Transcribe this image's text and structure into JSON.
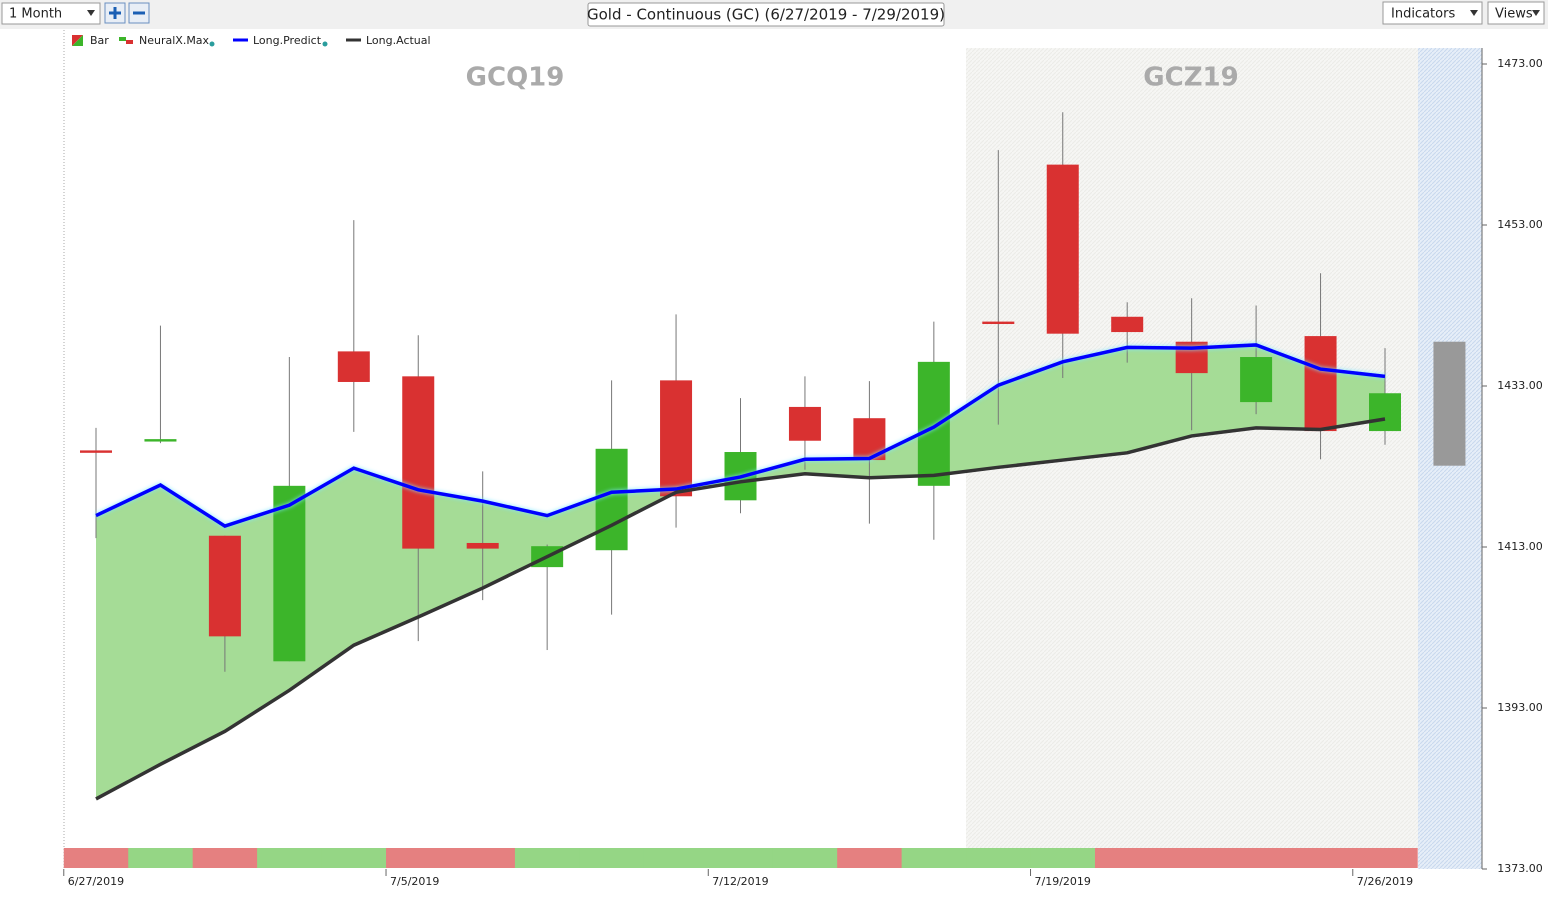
{
  "toolbar": {
    "period": "1 Month",
    "indicators": "Indicators",
    "views": "Views"
  },
  "chart_data": {
    "type": "candlestick",
    "title": "Gold - Continuous (GC) (6/27/2019 - 7/29/2019)",
    "annotations": [
      "GCQ19",
      "GCZ19"
    ],
    "bar_name": "Bar",
    "categories": [
      "6/27/2019",
      null,
      null,
      null,
      null,
      "7/5/2019",
      null,
      null,
      null,
      null,
      "7/12/2019",
      null,
      null,
      null,
      null,
      "7/19/2019",
      null,
      null,
      null,
      null,
      "7/26/2019"
    ],
    "open": [
      1425.0,
      1426.1,
      1414.4,
      1398.8,
      1437.3,
      1434.2,
      1413.5,
      1410.5,
      1412.6,
      1433.7,
      1418.8,
      1430.4,
      1429.0,
      1420.6,
      1441.0,
      1460.5,
      1441.6,
      1438.5,
      1431.0,
      1439.2,
      1427.4
    ],
    "high": [
      1427.8,
      1440.5,
      1414.4,
      1436.6,
      1453.6,
      1439.3,
      1422.4,
      1413.3,
      1433.7,
      1441.9,
      1431.5,
      1434.2,
      1433.6,
      1441.0,
      1462.3,
      1467.0,
      1443.4,
      1443.9,
      1443.0,
      1447.0,
      1437.7
    ],
    "low": [
      1414.1,
      1425.9,
      1397.5,
      1398.8,
      1427.3,
      1401.3,
      1406.4,
      1400.2,
      1404.6,
      1415.4,
      1417.2,
      1422.6,
      1415.9,
      1413.9,
      1428.2,
      1434.0,
      1435.9,
      1427.5,
      1429.5,
      1423.9,
      1425.7
    ],
    "close": [
      1424.7,
      1426.4,
      1401.9,
      1420.6,
      1433.5,
      1412.8,
      1412.8,
      1413.1,
      1425.2,
      1419.3,
      1424.8,
      1426.2,
      1423.8,
      1436.0,
      1440.7,
      1439.5,
      1439.7,
      1434.6,
      1436.6,
      1427.4,
      1432.1
    ],
    "up_color": "#3cb52a",
    "down_color": "#d93131",
    "forecast": {
      "high": 1438.5,
      "low": 1423.1,
      "color": "#999999"
    },
    "series": [
      {
        "name": "Long.Predict",
        "color": "#0000ff",
        "values": [
          1416.9,
          1420.7,
          1415.6,
          1418.2,
          1422.8,
          1420.1,
          1418.7,
          1416.9,
          1419.8,
          1420.2,
          1421.7,
          1423.9,
          1424.0,
          1427.9,
          1433.1,
          1436.0,
          1437.8,
          1437.7,
          1438.1,
          1435.1,
          1434.2
        ]
      },
      {
        "name": "Long.Actual",
        "color": "#333333",
        "values": [
          1381.7,
          1386.0,
          1390.1,
          1395.2,
          1400.8,
          1404.3,
          1407.9,
          1411.8,
          1415.7,
          1419.8,
          1421.1,
          1422.1,
          1421.6,
          1421.9,
          1422.9,
          1423.8,
          1424.7,
          1426.8,
          1427.8,
          1427.6,
          1428.9
        ]
      }
    ],
    "area_color": "#a5dc96",
    "signal": {
      "name": "NeuralX.Max",
      "colors": [
        "#e58080",
        "#95d685",
        "#e58080",
        "#95d685",
        "#95d685",
        "#e58080",
        "#e58080",
        "#95d685",
        "#95d685",
        "#95d685",
        "#95d685",
        "#95d685",
        "#e58080",
        "#95d685",
        "#95d685",
        "#95d685",
        "#e58080",
        "#e58080",
        "#e58080",
        "#e58080",
        "#e58080"
      ]
    },
    "ylim": [
      1373,
      1473
    ],
    "yticks": [
      {
        "value": 1373,
        "label": "1373.00"
      },
      {
        "value": 1393,
        "label": "1393.00"
      },
      {
        "value": 1413,
        "label": "1413.00"
      },
      {
        "value": 1433,
        "label": "1433.00"
      },
      {
        "value": 1453,
        "label": "1453.00"
      },
      {
        "value": 1473,
        "label": "1473.00"
      }
    ]
  }
}
